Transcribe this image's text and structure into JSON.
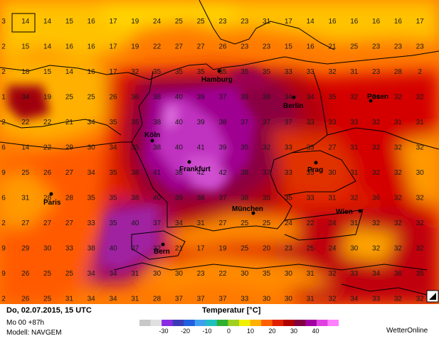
{
  "map": {
    "grid_values": [
      [
        "3",
        "14",
        "14",
        "15",
        "16",
        "17",
        "19",
        "24",
        "25",
        "25",
        "23",
        "23",
        "31",
        "17",
        "14",
        "16",
        "16",
        "16",
        "16",
        "17"
      ],
      [
        "2",
        "15",
        "14",
        "16",
        "16",
        "17",
        "19",
        "22",
        "27",
        "27",
        "26",
        "23",
        "23",
        "15",
        "16",
        "21",
        "25",
        "23",
        "23",
        "23"
      ],
      [
        "2",
        "18",
        "15",
        "14",
        "16",
        "17",
        "32",
        "35",
        "35",
        "35",
        "35",
        "35",
        "35",
        "33",
        "33",
        "32",
        "31",
        "23",
        "28",
        "2"
      ],
      [
        "1",
        "34",
        "19",
        "25",
        "25",
        "26",
        "36",
        "38",
        "40",
        "39",
        "37",
        "39",
        "38",
        "34",
        "34",
        "35",
        "32",
        "34",
        "32",
        "32"
      ],
      [
        "2",
        "22",
        "22",
        "21",
        "34",
        "35",
        "35",
        "38",
        "40",
        "39",
        "38",
        "37",
        "37",
        "37",
        "33",
        "33",
        "33",
        "32",
        "31",
        "31"
      ],
      [
        "6",
        "14",
        "22",
        "29",
        "30",
        "34",
        "35",
        "38",
        "40",
        "41",
        "39",
        "35",
        "32",
        "33",
        "33",
        "27",
        "31",
        "32",
        "32",
        "32"
      ],
      [
        "9",
        "25",
        "26",
        "27",
        "34",
        "35",
        "38",
        "41",
        "38",
        "42",
        "42",
        "38",
        "37",
        "33",
        "35",
        "30",
        "31",
        "32",
        "32",
        "30"
      ],
      [
        "6",
        "31",
        "28",
        "28",
        "35",
        "35",
        "38",
        "40",
        "39",
        "38",
        "37",
        "38",
        "35",
        "35",
        "33",
        "31",
        "32",
        "36",
        "32",
        "32"
      ],
      [
        "2",
        "27",
        "27",
        "27",
        "33",
        "35",
        "40",
        "37",
        "34",
        "31",
        "27",
        "25",
        "25",
        "24",
        "22",
        "24",
        "31",
        "32",
        "32",
        "32"
      ],
      [
        "9",
        "29",
        "30",
        "33",
        "38",
        "40",
        "37",
        "32",
        "21",
        "17",
        "19",
        "25",
        "20",
        "23",
        "25",
        "24",
        "30",
        "32",
        "32",
        "32"
      ],
      [
        "9",
        "26",
        "25",
        "25",
        "34",
        "34",
        "31",
        "30",
        "30",
        "23",
        "22",
        "30",
        "35",
        "30",
        "31",
        "32",
        "33",
        "34",
        "36",
        "35"
      ],
      [
        "2",
        "26",
        "25",
        "31",
        "34",
        "34",
        "31",
        "28",
        "37",
        "37",
        "37",
        "33",
        "30",
        "30",
        "31",
        "32",
        "34",
        "33",
        "32",
        "32"
      ]
    ],
    "cities": [
      "Hamburg",
      "Berlin",
      "Posen",
      "Koln",
      "Frankfurt",
      "Prag",
      "Paris",
      "Munchen",
      "Wien",
      "Bern"
    ],
    "city_labels": [
      "Hamburg",
      "Berlin",
      "Posen",
      "Köln",
      "Frankfurt",
      "Prag",
      "Paris",
      "München",
      "Wien",
      "Bern"
    ]
  },
  "footer": {
    "valid_time": "Do, 02.07.2015, 15 UTC",
    "run_info": "Mo 00 +87h",
    "model_info": "Modell: NAVGEM",
    "legend_title": "Temperatur [°C]",
    "brand": "WetterOnline"
  },
  "legend": {
    "ticks": [
      "-30",
      "-20",
      "-10",
      "0",
      "10",
      "20",
      "30",
      "40"
    ],
    "colors": [
      "#c8c8c8",
      "#e0e0e0",
      "#8a2be2",
      "#3b3bb8",
      "#2060e0",
      "#40a0f0",
      "#20c0c0",
      "#30b030",
      "#a0d020",
      "#f0f000",
      "#ffb000",
      "#ff6000",
      "#e02000",
      "#b00000",
      "#800040",
      "#a000a0",
      "#e040e0",
      "#ff80ff"
    ]
  }
}
